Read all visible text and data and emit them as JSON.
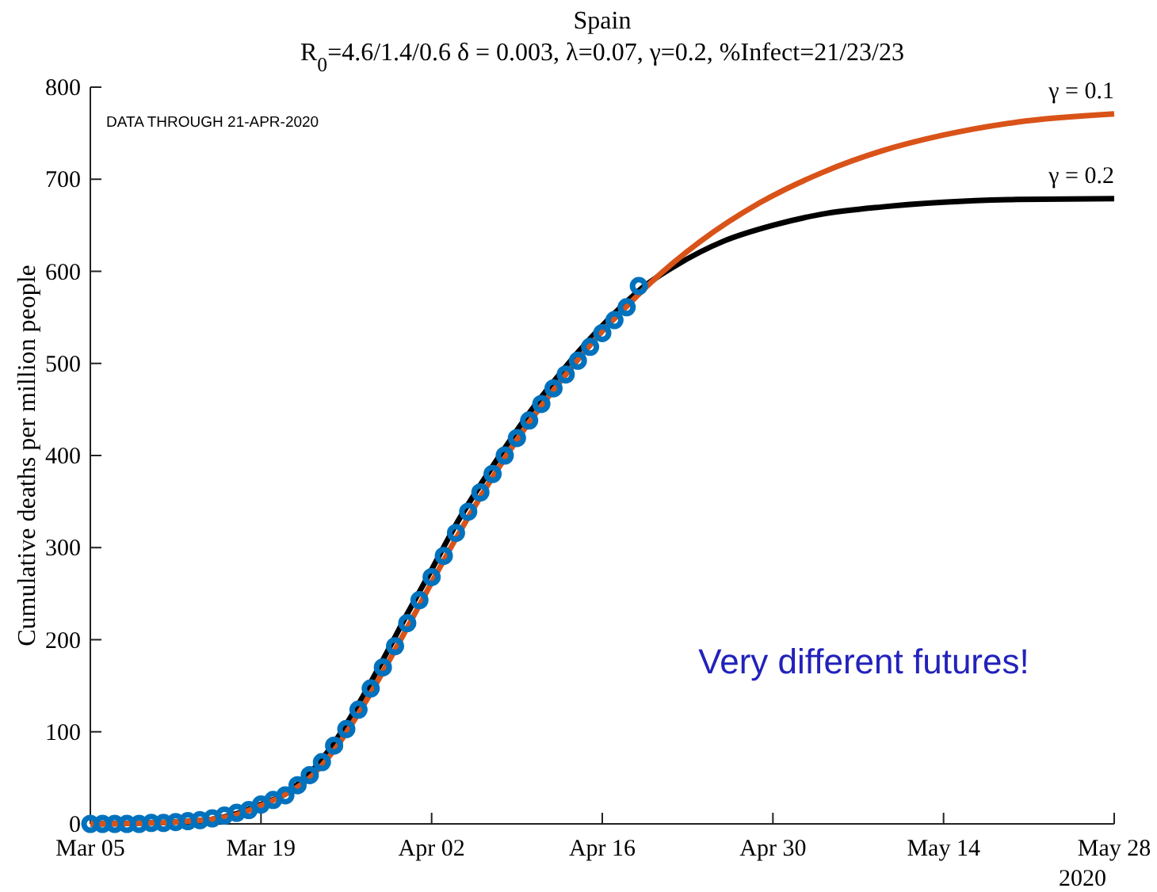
{
  "chart_data": {
    "type": "line",
    "title": "Spain",
    "subtitle": "R$_{0}$=4.6/1.4/0.6  δ = 0.003,  λ=0.07,  γ=0.2,  %Infect=21/23/23",
    "ylabel": "Cumulative deaths per million people",
    "annotations": [
      "DATA THROUGH 21-APR-2020",
      "Very different futures!",
      "2020"
    ],
    "xlim": [
      "2020-03-05",
      "2020-05-28"
    ],
    "xticks": [
      {
        "value": "2020-03-05",
        "label": "Mar 05"
      },
      {
        "value": "2020-03-19",
        "label": "Mar 19"
      },
      {
        "value": "2020-04-02",
        "label": "Apr 02"
      },
      {
        "value": "2020-04-16",
        "label": "Apr 16"
      },
      {
        "value": "2020-04-30",
        "label": "Apr 30"
      },
      {
        "value": "2020-05-14",
        "label": "May 14"
      },
      {
        "value": "2020-05-28",
        "label": "May 28"
      }
    ],
    "ylim": [
      0,
      800
    ],
    "yticks": [
      0,
      100,
      200,
      300,
      400,
      500,
      600,
      700,
      800
    ],
    "grid": false,
    "series": [
      {
        "name": "γ = 0.2",
        "color": "#000000",
        "marker": "none",
        "x": [
          "2020-03-05",
          "2020-03-12",
          "2020-03-15",
          "2020-03-17",
          "2020-03-19",
          "2020-03-21",
          "2020-03-23",
          "2020-03-25",
          "2020-03-27",
          "2020-03-29",
          "2020-03-31",
          "2020-04-02",
          "2020-04-04",
          "2020-04-06",
          "2020-04-08",
          "2020-04-10",
          "2020-04-12",
          "2020-04-14",
          "2020-04-16",
          "2020-04-18",
          "2020-04-19",
          "2020-04-22",
          "2020-04-26",
          "2020-04-30",
          "2020-05-04",
          "2020-05-09",
          "2020-05-14",
          "2020-05-20",
          "2020-05-28"
        ],
        "values": [
          0,
          2,
          5,
          11,
          21,
          33,
          55,
          88,
          130,
          178,
          228,
          276,
          325,
          368,
          408,
          446,
          480,
          512,
          541,
          567,
          579,
          606,
          633,
          650,
          662,
          670,
          675,
          678,
          679
        ]
      },
      {
        "name": "γ = 0.1",
        "color": "#d95319",
        "marker": "none",
        "x": [
          "2020-03-05",
          "2020-03-12",
          "2020-03-15",
          "2020-03-17",
          "2020-03-19",
          "2020-03-21",
          "2020-03-23",
          "2020-03-25",
          "2020-03-27",
          "2020-03-29",
          "2020-03-31",
          "2020-04-02",
          "2020-04-04",
          "2020-04-06",
          "2020-04-08",
          "2020-04-10",
          "2020-04-12",
          "2020-04-14",
          "2020-04-16",
          "2020-04-18",
          "2020-04-20",
          "2020-04-24",
          "2020-04-29",
          "2020-05-04",
          "2020-05-09",
          "2020-05-14",
          "2020-05-20",
          "2020-05-28"
        ],
        "values": [
          0,
          2,
          5,
          10,
          20,
          32,
          50,
          80,
          120,
          165,
          213,
          262,
          310,
          355,
          397,
          436,
          471,
          504,
          535,
          562,
          588,
          632,
          675,
          707,
          731,
          748,
          762,
          771
        ]
      },
      {
        "type": "scatter",
        "color": "#0072bd",
        "marker": "circle",
        "x": [
          "2020-03-05",
          "2020-03-06",
          "2020-03-07",
          "2020-03-08",
          "2020-03-09",
          "2020-03-10",
          "2020-03-11",
          "2020-03-12",
          "2020-03-13",
          "2020-03-14",
          "2020-03-15",
          "2020-03-16",
          "2020-03-17",
          "2020-03-18",
          "2020-03-19",
          "2020-03-20",
          "2020-03-21",
          "2020-03-22",
          "2020-03-23",
          "2020-03-24",
          "2020-03-25",
          "2020-03-26",
          "2020-03-27",
          "2020-03-28",
          "2020-03-29",
          "2020-03-30",
          "2020-03-31",
          "2020-04-01",
          "2020-04-02",
          "2020-04-03",
          "2020-04-04",
          "2020-04-05",
          "2020-04-06",
          "2020-04-07",
          "2020-04-08",
          "2020-04-09",
          "2020-04-10",
          "2020-04-11",
          "2020-04-12",
          "2020-04-13",
          "2020-04-14",
          "2020-04-15",
          "2020-04-16",
          "2020-04-17",
          "2020-04-18",
          "2020-04-19"
        ],
        "values": [
          0,
          0,
          0,
          0,
          0,
          1,
          1,
          2,
          3,
          4,
          6,
          9,
          12,
          15,
          21,
          26,
          31,
          42,
          53,
          67,
          85,
          103,
          124,
          147,
          170,
          193,
          218,
          243,
          268,
          291,
          316,
          339,
          360,
          380,
          400,
          419,
          438,
          456,
          473,
          488,
          503,
          518,
          533,
          547,
          561,
          584
        ]
      }
    ]
  }
}
